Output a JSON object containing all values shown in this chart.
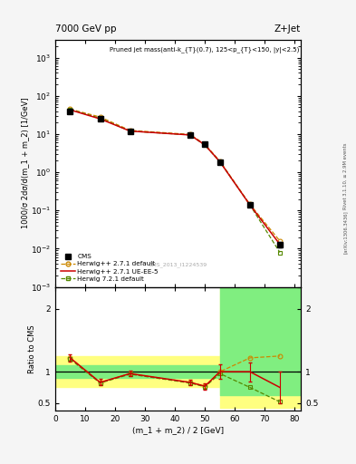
{
  "title_top": "7000 GeV pp",
  "title_right": "Z+Jet",
  "annotation": "Pruned jet mass(anti-k_{T}(0.7), 125<p_{T}<150, |y|<2.5)",
  "cms_label": "CMS_2013_I1224539",
  "ylabel_main": "1000/σ 2dσ/d(m_1 + m_2) [1/GeV]",
  "ylabel_ratio": "Ratio to CMS",
  "xlabel": "(m_1 + m_2) / 2 [GeV]",
  "rivet_label": "Rivet 3.1.10, ≥ 2.9M events",
  "arxiv_label": "[arXiv:1306.3436]",
  "x_data": [
    5,
    15,
    25,
    45,
    50,
    55,
    65,
    75
  ],
  "cms_y": [
    40,
    25,
    11.5,
    9.5,
    5.5,
    1.85,
    0.14,
    0.013
  ],
  "cms_yerr_lo": [
    2.5,
    1.5,
    0.8,
    0.6,
    0.4,
    0.15,
    0.015,
    0.002
  ],
  "cms_yerr_hi": [
    2.5,
    1.5,
    0.8,
    0.6,
    0.4,
    0.15,
    0.015,
    0.002
  ],
  "hw271_default_y": [
    45,
    28,
    12.5,
    9.8,
    5.4,
    1.95,
    0.145,
    0.016
  ],
  "hw271_uee5_y": [
    43,
    25,
    12.0,
    9.5,
    5.2,
    1.88,
    0.14,
    0.013
  ],
  "hw721_default_y": [
    44,
    26,
    12.0,
    9.5,
    5.1,
    1.88,
    0.14,
    0.008
  ],
  "ratio_hw271_default": [
    1.22,
    0.83,
    0.97,
    0.83,
    0.77,
    1.0,
    1.22,
    1.25
  ],
  "ratio_hw271_uee5": [
    1.22,
    0.83,
    0.97,
    0.83,
    0.77,
    1.0,
    1.0,
    0.75
  ],
  "ratio_hw721_default": [
    1.2,
    0.82,
    0.96,
    0.82,
    0.76,
    0.97,
    0.75,
    0.52
  ],
  "ratio_uee5_err_lo": [
    0.06,
    0.05,
    0.04,
    0.04,
    0.05,
    0.12,
    0.15,
    0.25
  ],
  "ratio_uee5_err_hi": [
    0.06,
    0.05,
    0.04,
    0.04,
    0.05,
    0.12,
    0.15,
    0.25
  ],
  "color_cms": "#000000",
  "color_hw271_default": "#cc8800",
  "color_hw271_uee5": "#cc0000",
  "color_hw721_default": "#558800",
  "color_yellow": "#ffff80",
  "color_green": "#80ee80",
  "bg_color": "#f5f5f5",
  "plot_bg": "#ffffff",
  "xlim": [
    0,
    82
  ],
  "ylim_main": [
    0.001,
    3000.0
  ],
  "ylim_ratio": [
    0.38,
    2.35
  ],
  "ratio_yticks": [
    0.5,
    1.0,
    2.0
  ]
}
